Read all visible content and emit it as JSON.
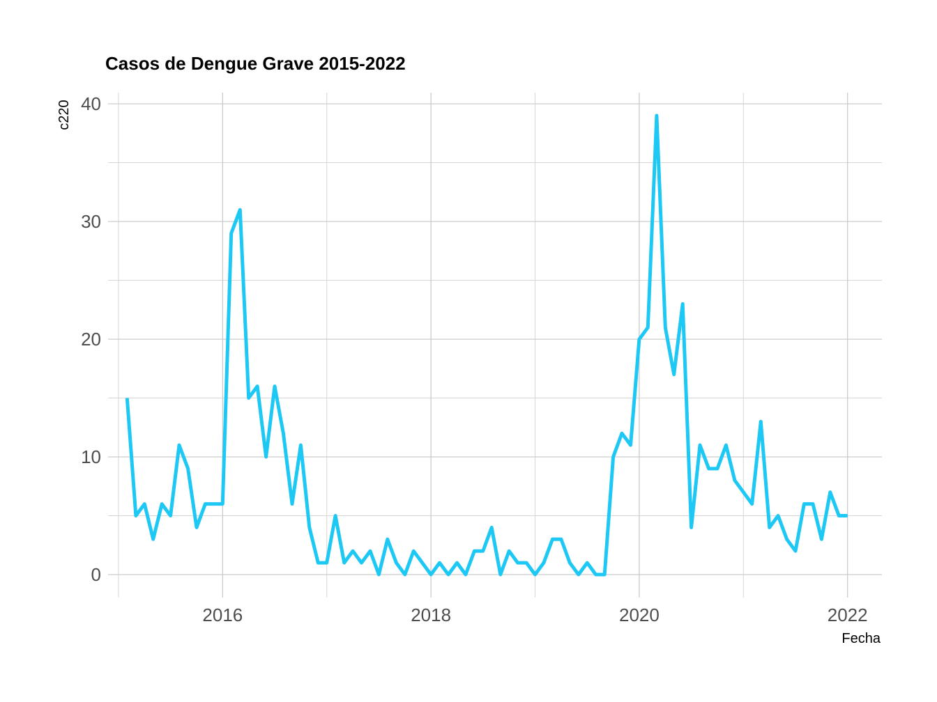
{
  "chart_data": {
    "type": "line",
    "title": "Casos de Dengue Grave 2015-2022",
    "xlabel": "Fecha",
    "ylabel": "c220",
    "x_ticks": [
      "2016",
      "2018",
      "2020",
      "2022"
    ],
    "x_tick_values": [
      2016,
      2018,
      2020,
      2022
    ],
    "y_ticks": [
      "0",
      "10",
      "20",
      "30",
      "40"
    ],
    "y_tick_values": [
      0,
      10,
      20,
      30,
      40
    ],
    "xlim": [
      2014.9,
      2022.33
    ],
    "ylim": [
      -1.95,
      40.95
    ],
    "grid": true,
    "line_color": "#1EC8F5",
    "series": [
      {
        "x": [
          2015.083,
          2015.167,
          2015.25,
          2015.333,
          2015.417,
          2015.5,
          2015.583,
          2015.667,
          2015.75,
          2015.833,
          2015.917,
          2016.0,
          2016.083,
          2016.167,
          2016.25,
          2016.333,
          2016.417,
          2016.5,
          2016.583,
          2016.667,
          2016.75,
          2016.833,
          2016.917,
          2017.0,
          2017.083,
          2017.167,
          2017.25,
          2017.333,
          2017.417,
          2017.5,
          2017.583,
          2017.667,
          2017.75,
          2017.833,
          2017.917,
          2018.0,
          2018.083,
          2018.167,
          2018.25,
          2018.333,
          2018.417,
          2018.5,
          2018.583,
          2018.667,
          2018.75,
          2018.833,
          2018.917,
          2019.0,
          2019.083,
          2019.167,
          2019.25,
          2019.333,
          2019.417,
          2019.5,
          2019.583,
          2019.667,
          2019.75,
          2019.833,
          2019.917,
          2020.0,
          2020.083,
          2020.167,
          2020.25,
          2020.333,
          2020.417,
          2020.5,
          2020.583,
          2020.667,
          2020.75,
          2020.833,
          2020.917,
          2021.0,
          2021.083,
          2021.167,
          2021.25,
          2021.333,
          2021.417,
          2021.5,
          2021.583,
          2021.667,
          2021.75,
          2021.833,
          2021.917,
          2022.0
        ],
        "values": [
          15,
          5,
          6,
          3,
          6,
          5,
          11,
          9,
          4,
          6,
          6,
          6,
          29,
          31,
          15,
          16,
          10,
          16,
          12,
          6,
          11,
          4,
          1,
          1,
          5,
          1,
          2,
          1,
          2,
          0,
          3,
          1,
          0,
          2,
          1,
          0,
          1,
          0,
          1,
          0,
          2,
          2,
          4,
          0,
          2,
          1,
          1,
          0,
          1,
          3,
          3,
          1,
          0,
          1,
          0,
          0,
          10,
          12,
          11,
          20,
          21,
          39,
          21,
          17,
          23,
          4,
          11,
          9,
          9,
          11,
          8,
          7,
          6,
          13,
          4,
          5,
          3,
          2,
          6,
          6,
          3,
          7,
          5,
          5
        ]
      }
    ]
  }
}
